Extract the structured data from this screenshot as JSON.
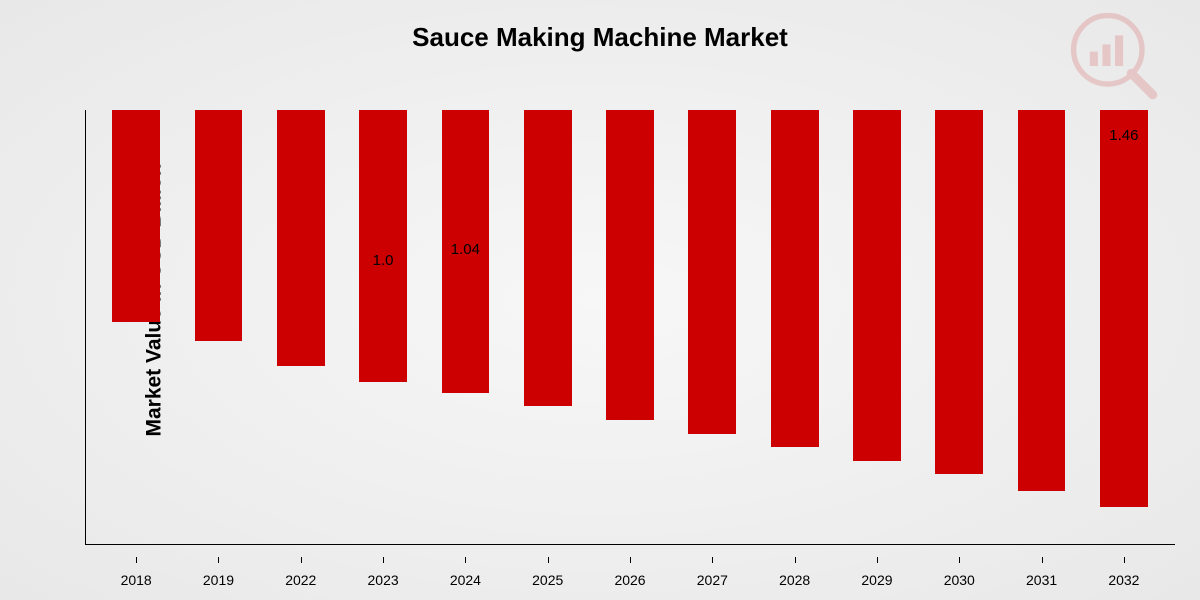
{
  "chart": {
    "type": "bar",
    "title": "Sauce Making Machine Market",
    "title_fontsize": 26,
    "ylabel": "Market Value in USD Billion",
    "ylabel_fontsize": 21,
    "categories": [
      "2018",
      "2019",
      "2022",
      "2023",
      "2024",
      "2025",
      "2026",
      "2027",
      "2028",
      "2029",
      "2030",
      "2031",
      "2032"
    ],
    "values": [
      0.78,
      0.85,
      0.94,
      1.0,
      1.04,
      1.09,
      1.14,
      1.19,
      1.24,
      1.29,
      1.34,
      1.4,
      1.46
    ],
    "value_labels": [
      "",
      "",
      "",
      "1.0",
      "1.04",
      "",
      "",
      "",
      "",
      "",
      "",
      "",
      "1.46"
    ],
    "bar_color": "#cc0000",
    "ylim": [
      0,
      1.6
    ],
    "background": "radial-gradient(#f7f7f7,#e8e8e8)",
    "axis_color": "#000000",
    "xlabel_fontsize": 14,
    "value_label_fontsize": 15,
    "bar_width_ratio": 0.58,
    "watermark": {
      "type": "bar-chart-magnifier-logo",
      "color": "#cc0000",
      "opacity": 0.15
    }
  }
}
